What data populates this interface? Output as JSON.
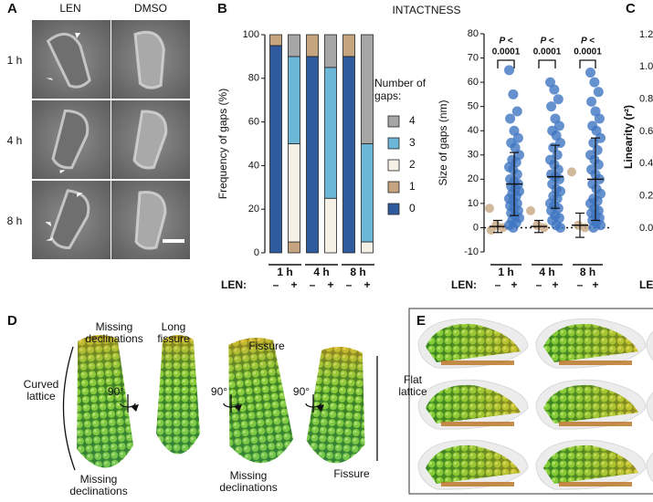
{
  "panel_labels": [
    "A",
    "B",
    "C",
    "D",
    "E"
  ],
  "panel_a": {
    "columns": [
      "LEN",
      "DMSO"
    ],
    "rows": [
      "1 h",
      "4 h",
      "8 h"
    ]
  },
  "panel_b": {
    "title": "INTACTNESS"
  },
  "chart_data": [
    {
      "type": "stacked-bar",
      "ylabel": "Frequency of gaps (%)",
      "categories": [
        "–",
        "+",
        "–",
        "+",
        "–",
        "+"
      ],
      "groups": [
        "1 h",
        "4 h",
        "8 h"
      ],
      "row_label": "LEN:",
      "legend_title": "Number of gaps:",
      "series": [
        {
          "name": "0",
          "color": "#2f5b9e",
          "values": [
            95,
            0,
            90,
            0,
            90,
            0
          ]
        },
        {
          "name": "1",
          "color": "#c4a57f",
          "values": [
            5,
            5,
            10,
            0,
            10,
            0
          ]
        },
        {
          "name": "2",
          "color": "#f6f1e6",
          "values": [
            0,
            45,
            0,
            25,
            0,
            5
          ]
        },
        {
          "name": "3",
          "color": "#6cb6d8",
          "values": [
            0,
            40,
            0,
            60,
            0,
            45
          ]
        },
        {
          "name": "4",
          "color": "#a6a6a6",
          "values": [
            0,
            10,
            0,
            15,
            0,
            50
          ]
        }
      ],
      "ylim": [
        0,
        100
      ],
      "yticks": [
        0,
        20,
        40,
        60,
        80,
        100
      ]
    },
    {
      "type": "dot",
      "ylabel": "Size of gaps (nm)",
      "categories": [
        "–",
        "+",
        "–",
        "+",
        "–",
        "+"
      ],
      "groups": [
        "1 h",
        "4 h",
        "8 h"
      ],
      "row_label": "LEN:",
      "columns": [
        {
          "color": "#c8a882",
          "points": [
            8,
            1,
            0,
            -1
          ],
          "mean": 0.5,
          "sd": 2.5
        },
        {
          "color": "#3f76c2",
          "points": [
            65,
            55,
            48,
            45,
            40,
            37,
            35,
            33,
            30,
            28,
            27,
            25,
            24,
            22,
            20,
            19,
            18,
            17,
            16,
            15,
            14,
            13,
            12,
            11,
            10,
            9,
            8,
            7,
            6,
            5,
            4,
            3,
            2,
            1,
            0
          ],
          "mean": 18,
          "sd": 13
        },
        {
          "color": "#c8a882",
          "points": [
            7,
            1,
            0
          ],
          "mean": 0.5,
          "sd": 2.5
        },
        {
          "color": "#3f76c2",
          "points": [
            60,
            57,
            53,
            50,
            45,
            42,
            40,
            38,
            35,
            33,
            30,
            28,
            26,
            24,
            22,
            21,
            20,
            18,
            16,
            15,
            13,
            12,
            10,
            9,
            8,
            7,
            5,
            4,
            3,
            1,
            0
          ],
          "mean": 21,
          "sd": 13
        },
        {
          "color": "#c8a882",
          "points": [
            23,
            1,
            0
          ],
          "mean": 1,
          "sd": 5
        },
        {
          "color": "#3f76c2",
          "points": [
            64,
            60,
            56,
            52,
            48,
            45,
            42,
            40,
            37,
            35,
            32,
            30,
            28,
            26,
            24,
            22,
            20,
            18,
            16,
            14,
            12,
            11,
            10,
            8,
            7,
            6,
            5,
            4,
            3,
            2,
            1,
            0
          ],
          "mean": 20,
          "sd": 17
        }
      ],
      "annotations": [
        {
          "line1": "P <",
          "line2": "0.0001"
        },
        {
          "line1": "P <",
          "line2": "0.0001"
        },
        {
          "line1": "P <",
          "line2": "0.0001"
        }
      ],
      "ylim": [
        -10,
        80
      ],
      "yticks": [
        -10,
        0,
        10,
        20,
        30,
        40,
        50,
        60,
        70,
        80
      ]
    },
    {
      "type": "axis-only",
      "ylabel": "Linearity (r²)",
      "row_label": "LEN:",
      "ylim": [
        0,
        1.2
      ],
      "yticks": [
        {
          "value": 0,
          "label": "0.0"
        },
        0.2,
        0.4,
        0.6,
        0.8,
        {
          "value": 1,
          "label": "1.0"
        },
        1.2
      ]
    }
  ],
  "panel_d": {
    "annotations": [
      "Missing declinations",
      "Long fissure",
      "Curved lattice",
      "90°",
      "90°",
      "90°",
      "Fissure",
      "Flat lattice",
      "Missing declinations",
      "Missing declinations",
      "Fissure"
    ]
  }
}
